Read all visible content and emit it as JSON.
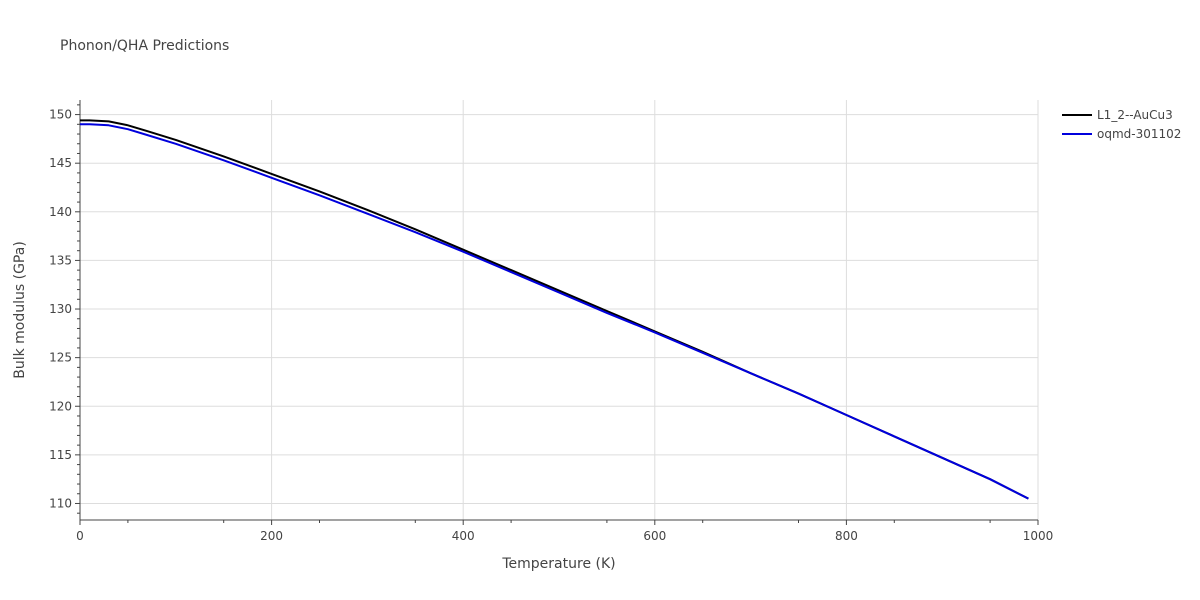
{
  "chart_data": {
    "type": "line",
    "title": "Phonon/QHA Predictions",
    "xlabel": "Temperature (K)",
    "ylabel": "Bulk modulus (GPa)",
    "xlim": [
      0,
      1000
    ],
    "ylim": [
      108.3,
      151.5
    ],
    "x_ticks": [
      "0",
      "200",
      "400",
      "600",
      "800",
      "1000"
    ],
    "y_ticks": [
      "110",
      "115",
      "120",
      "125",
      "130",
      "135",
      "140",
      "145",
      "150"
    ],
    "grid": true,
    "legend_position": "top-right",
    "series": [
      {
        "name": "L1_2--AuCu3",
        "color": "#000000",
        "x": [
          0,
          10,
          30,
          50,
          70,
          100,
          150,
          200,
          250,
          300,
          350,
          400,
          450,
          500,
          550,
          600,
          650,
          700,
          750,
          800,
          850,
          900,
          950,
          990
        ],
        "y": [
          149.4,
          149.4,
          149.3,
          148.9,
          148.3,
          147.4,
          145.7,
          143.9,
          142.1,
          140.2,
          138.2,
          136.1,
          134.0,
          131.9,
          129.8,
          127.7,
          125.6,
          123.4,
          121.3,
          119.1,
          116.9,
          114.7,
          112.5,
          110.5
        ]
      },
      {
        "name": "oqmd-301102",
        "color": "#0000dd",
        "x": [
          0,
          10,
          30,
          50,
          70,
          100,
          150,
          200,
          250,
          300,
          350,
          400,
          450,
          500,
          550,
          600,
          650,
          700,
          750,
          800,
          850,
          900,
          950,
          990
        ],
        "y": [
          149.0,
          149.0,
          148.9,
          148.5,
          147.9,
          147.0,
          145.3,
          143.5,
          141.7,
          139.8,
          137.9,
          135.9,
          133.8,
          131.7,
          129.6,
          127.6,
          125.5,
          123.4,
          121.3,
          119.1,
          116.9,
          114.7,
          112.5,
          110.5
        ]
      }
    ]
  }
}
